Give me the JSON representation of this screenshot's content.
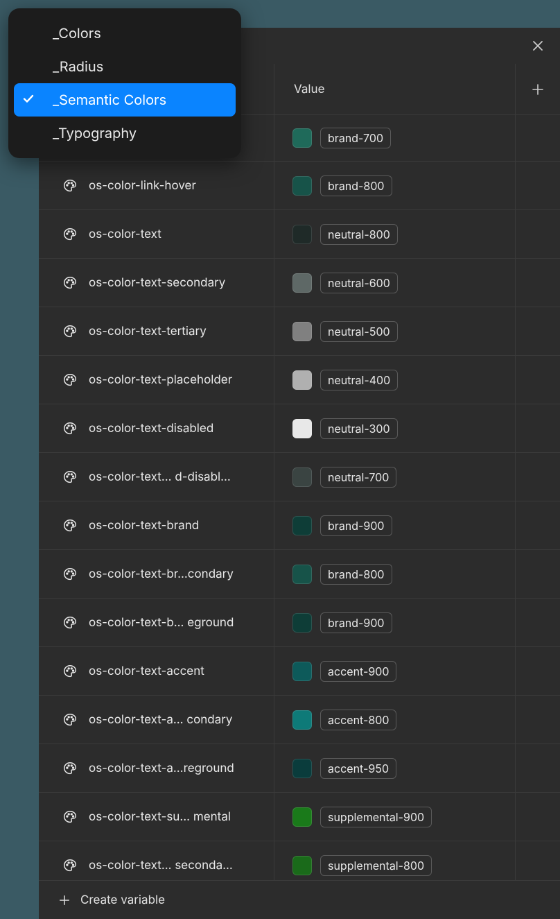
{
  "dropdown": {
    "items": [
      {
        "label": "_Colors",
        "selected": false
      },
      {
        "label": "_Radius",
        "selected": false
      },
      {
        "label": "_Semantic Colors",
        "selected": true
      },
      {
        "label": "_Typography",
        "selected": false
      }
    ],
    "selected_bg": "#0a84ff",
    "bg": "#1c1c1c"
  },
  "panel": {
    "bg": "#2c2c2c",
    "border": "#3a3a3a",
    "page_bg": "#3a5a64"
  },
  "header": {
    "value_label": "Value"
  },
  "footer": {
    "label": "Create variable"
  },
  "rows": [
    {
      "name": "",
      "value_label": "brand-700",
      "swatch": "#1f6a5a"
    },
    {
      "name": "os-color-link-hover",
      "value_label": "brand-800",
      "swatch": "#175349"
    },
    {
      "name": "os-color-text",
      "value_label": "neutral-800",
      "swatch": "#1f2a28"
    },
    {
      "name": "os-color-text-secondary",
      "value_label": "neutral-600",
      "swatch": "#5e6866"
    },
    {
      "name": "os-color-text-tertiary",
      "value_label": "neutral-500",
      "swatch": "#808080"
    },
    {
      "name": "os-color-text-placeholder",
      "value_label": "neutral-400",
      "swatch": "#b0b0b0"
    },
    {
      "name": "os-color-text-disabled",
      "value_label": "neutral-300",
      "swatch": "#e8e8e8"
    },
    {
      "name": "os-color-text... d-disabl...",
      "value_label": "neutral-700",
      "swatch": "#3a4442"
    },
    {
      "name": "os-color-text-brand",
      "value_label": "brand-900",
      "swatch": "#0e3d37"
    },
    {
      "name": "os-color-text-br...condary",
      "value_label": "brand-800",
      "swatch": "#175349"
    },
    {
      "name": "os-color-text-b... eground",
      "value_label": "brand-900",
      "swatch": "#0e3d37"
    },
    {
      "name": "os-color-text-accent",
      "value_label": "accent-900",
      "swatch": "#0d5a5a"
    },
    {
      "name": "os-color-text-a... condary",
      "value_label": "accent-800",
      "swatch": "#0e7a78"
    },
    {
      "name": "os-color-text-a...reground",
      "value_label": "accent-950",
      "swatch": "#0a3c3c"
    },
    {
      "name": "os-color-text-su... mental",
      "value_label": "supplemental-900",
      "swatch": "#1a7a1a"
    },
    {
      "name": "os-color-text... seconda...",
      "value_label": "supplemental-800",
      "swatch": "#1a6a1a"
    }
  ]
}
